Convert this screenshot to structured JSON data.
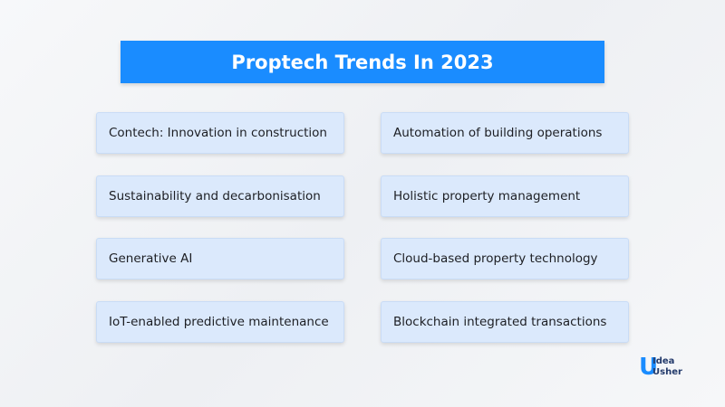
{
  "header": {
    "title": "Proptech Trends In 2023"
  },
  "trends": {
    "left": [
      "Contech: Innovation in construction",
      "Sustainability and decarbonisation",
      "Generative AI",
      "IoT-enabled predictive maintenance"
    ],
    "right": [
      "Automation of building operations",
      "Holistic property management",
      "Cloud-based property technology",
      "Blockchain integrated transactions"
    ]
  },
  "logo": {
    "line1": "Idea",
    "line2": "Usher"
  }
}
